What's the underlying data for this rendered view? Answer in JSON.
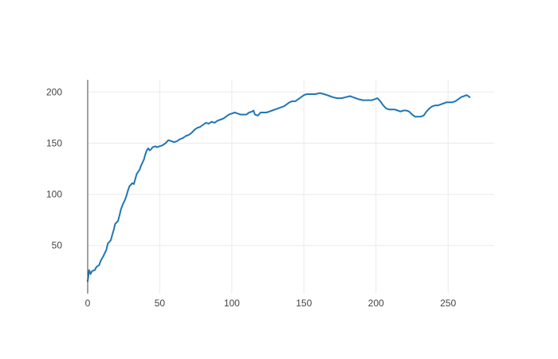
{
  "colors": {
    "line": "#1f77b4",
    "grid": "#ebebeb",
    "axis": "#444444",
    "tick_text": "#444444",
    "background": "#ffffff"
  },
  "chart_data": {
    "type": "line",
    "title": "",
    "xlabel": "",
    "ylabel": "",
    "xlim": [
      0,
      282
    ],
    "ylim": [
      3,
      212
    ],
    "grid": true,
    "legend": "none",
    "x_ticks": [
      0,
      50,
      100,
      150,
      200,
      250
    ],
    "y_ticks": [
      50,
      100,
      150,
      200
    ],
    "x_tick_labels": [
      "0",
      "50",
      "100",
      "150",
      "200",
      "250"
    ],
    "y_tick_labels": [
      "50",
      "100",
      "150",
      "200"
    ],
    "series": [
      {
        "points": [
          [
            0,
            15
          ],
          [
            1,
            26
          ],
          [
            2,
            22
          ],
          [
            3,
            25
          ],
          [
            5,
            26
          ],
          [
            6,
            29
          ],
          [
            8,
            31
          ],
          [
            9,
            35
          ],
          [
            11,
            40
          ],
          [
            12,
            43
          ],
          [
            13,
            46
          ],
          [
            14,
            52
          ],
          [
            16,
            55
          ],
          [
            17,
            60
          ],
          [
            18,
            65
          ],
          [
            19,
            71
          ],
          [
            21,
            74
          ],
          [
            22,
            79
          ],
          [
            23,
            85
          ],
          [
            24,
            89
          ],
          [
            26,
            95
          ],
          [
            27,
            99
          ],
          [
            28,
            104
          ],
          [
            29,
            108
          ],
          [
            31,
            111
          ],
          [
            32,
            110
          ],
          [
            33,
            115
          ],
          [
            34,
            120
          ],
          [
            36,
            124
          ],
          [
            37,
            128
          ],
          [
            38,
            131
          ],
          [
            39,
            134
          ],
          [
            40,
            139
          ],
          [
            41,
            143
          ],
          [
            42,
            145
          ],
          [
            43,
            143
          ],
          [
            44,
            144
          ],
          [
            45,
            146
          ],
          [
            47,
            147
          ],
          [
            48,
            146
          ],
          [
            50,
            147
          ],
          [
            52,
            148
          ],
          [
            54,
            150
          ],
          [
            56,
            153
          ],
          [
            58,
            152
          ],
          [
            60,
            151
          ],
          [
            62,
            152
          ],
          [
            64,
            154
          ],
          [
            66,
            155
          ],
          [
            68,
            157
          ],
          [
            70,
            158
          ],
          [
            72,
            160
          ],
          [
            74,
            163
          ],
          [
            76,
            165
          ],
          [
            78,
            166
          ],
          [
            80,
            168
          ],
          [
            82,
            170
          ],
          [
            84,
            169
          ],
          [
            86,
            171
          ],
          [
            88,
            170
          ],
          [
            90,
            172
          ],
          [
            92,
            173
          ],
          [
            94,
            174
          ],
          [
            96,
            176
          ],
          [
            98,
            178
          ],
          [
            100,
            179
          ],
          [
            102,
            180
          ],
          [
            104,
            179
          ],
          [
            106,
            178
          ],
          [
            108,
            178
          ],
          [
            110,
            178
          ],
          [
            112,
            180
          ],
          [
            114,
            181
          ],
          [
            115,
            182
          ],
          [
            116,
            178
          ],
          [
            118,
            177
          ],
          [
            120,
            180
          ],
          [
            122,
            180
          ],
          [
            124,
            180
          ],
          [
            126,
            181
          ],
          [
            128,
            182
          ],
          [
            130,
            183
          ],
          [
            132,
            184
          ],
          [
            134,
            185
          ],
          [
            136,
            186
          ],
          [
            138,
            188
          ],
          [
            140,
            190
          ],
          [
            142,
            191
          ],
          [
            144,
            191
          ],
          [
            146,
            193
          ],
          [
            148,
            195
          ],
          [
            150,
            197
          ],
          [
            152,
            198
          ],
          [
            155,
            198
          ],
          [
            158,
            198
          ],
          [
            161,
            199
          ],
          [
            164,
            198
          ],
          [
            166,
            197
          ],
          [
            168,
            196
          ],
          [
            170,
            195
          ],
          [
            173,
            194
          ],
          [
            176,
            194
          ],
          [
            179,
            195
          ],
          [
            182,
            196
          ],
          [
            184,
            195
          ],
          [
            186,
            194
          ],
          [
            188,
            193
          ],
          [
            191,
            192
          ],
          [
            194,
            192
          ],
          [
            197,
            192
          ],
          [
            199,
            193
          ],
          [
            201,
            194
          ],
          [
            203,
            191
          ],
          [
            205,
            187
          ],
          [
            207,
            184
          ],
          [
            209,
            183
          ],
          [
            211,
            183
          ],
          [
            213,
            183
          ],
          [
            215,
            182
          ],
          [
            217,
            181
          ],
          [
            219,
            182
          ],
          [
            221,
            182
          ],
          [
            223,
            181
          ],
          [
            225,
            178
          ],
          [
            227,
            176
          ],
          [
            229,
            176
          ],
          [
            231,
            176
          ],
          [
            233,
            177
          ],
          [
            235,
            181
          ],
          [
            237,
            184
          ],
          [
            239,
            186
          ],
          [
            241,
            187
          ],
          [
            243,
            187
          ],
          [
            245,
            188
          ],
          [
            247,
            189
          ],
          [
            249,
            190
          ],
          [
            251,
            190
          ],
          [
            253,
            190
          ],
          [
            255,
            191
          ],
          [
            257,
            193
          ],
          [
            259,
            195
          ],
          [
            261,
            196
          ],
          [
            263,
            197
          ],
          [
            265,
            195
          ]
        ]
      }
    ]
  }
}
